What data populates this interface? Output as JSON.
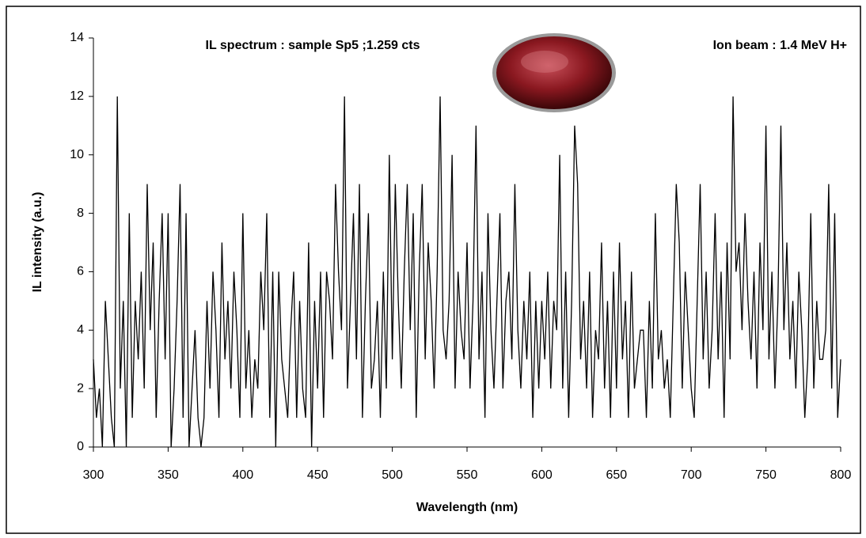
{
  "chart_data": {
    "type": "line",
    "title": "IL spectrum : sample Sp5 ;1.259 cts",
    "subtitle": "Ion beam : 1.4 MeV  H+",
    "xlabel": "Wavelength (nm)",
    "ylabel": "IL intensity (a.u.)",
    "color": "#000000",
    "x": [
      300,
      302,
      304,
      306,
      308,
      310,
      312,
      314,
      316,
      318,
      320,
      322,
      324,
      326,
      328,
      330,
      332,
      334,
      336,
      338,
      340,
      342,
      344,
      346,
      348,
      350,
      352,
      354,
      356,
      358,
      360,
      362,
      364,
      366,
      368,
      370,
      372,
      374,
      376,
      378,
      380,
      382,
      384,
      386,
      388,
      390,
      392,
      394,
      396,
      398,
      400,
      402,
      404,
      406,
      408,
      410,
      412,
      414,
      416,
      418,
      420,
      422,
      424,
      426,
      428,
      430,
      432,
      434,
      436,
      438,
      440,
      442,
      444,
      446,
      448,
      450,
      452,
      454,
      456,
      458,
      460,
      462,
      464,
      466,
      468,
      470,
      472,
      474,
      476,
      478,
      480,
      482,
      484,
      486,
      488,
      490,
      492,
      494,
      496,
      498,
      500,
      502,
      504,
      506,
      508,
      510,
      512,
      514,
      516,
      518,
      520,
      522,
      524,
      526,
      528,
      530,
      532,
      534,
      536,
      538,
      540,
      542,
      544,
      546,
      548,
      550,
      552,
      554,
      556,
      558,
      560,
      562,
      564,
      566,
      568,
      570,
      572,
      574,
      576,
      578,
      580,
      582,
      584,
      586,
      588,
      590,
      592,
      594,
      596,
      598,
      600,
      602,
      604,
      606,
      608,
      610,
      612,
      614,
      616,
      618,
      620,
      622,
      624,
      626,
      628,
      630,
      632,
      634,
      636,
      638,
      640,
      642,
      644,
      646,
      648,
      650,
      652,
      654,
      656,
      658,
      660,
      662,
      664,
      666,
      668,
      670,
      672,
      674,
      676,
      678,
      680,
      682,
      684,
      686,
      688,
      690,
      692,
      694,
      696,
      698,
      700,
      702,
      704,
      706,
      708,
      710,
      712,
      714,
      716,
      718,
      720,
      722,
      724,
      726,
      728,
      730,
      732,
      734,
      736,
      738,
      740,
      742,
      744,
      746,
      748,
      750,
      752,
      754,
      756,
      758,
      760,
      762,
      764,
      766,
      768,
      770,
      772,
      774,
      776,
      778,
      780,
      782,
      784,
      786,
      788,
      790,
      792,
      794,
      796,
      798,
      800
    ],
    "values": [
      3,
      1,
      2,
      0,
      5,
      3,
      1,
      0,
      12,
      2,
      5,
      0,
      8,
      1,
      5,
      3,
      6,
      2,
      9,
      4,
      7,
      1,
      5,
      8,
      3,
      8,
      0,
      2,
      5,
      9,
      1,
      8,
      0,
      2,
      4,
      1,
      0,
      1,
      5,
      2,
      6,
      4,
      1,
      7,
      3,
      5,
      2,
      6,
      4,
      1,
      8,
      2,
      4,
      1,
      3,
      2,
      6,
      4,
      8,
      1,
      6,
      0,
      6,
      3,
      2,
      1,
      4,
      6,
      1,
      5,
      2,
      1,
      7,
      0,
      5,
      2,
      6,
      1,
      6,
      5,
      3,
      9,
      6,
      4,
      12,
      2,
      5,
      8,
      3,
      9,
      1,
      5,
      8,
      2,
      3,
      5,
      1,
      6,
      2,
      10,
      3,
      9,
      5,
      2,
      6,
      9,
      4,
      8,
      1,
      6,
      9,
      3,
      7,
      5,
      2,
      6,
      12,
      4,
      3,
      5,
      10,
      2,
      6,
      4,
      3,
      7,
      2,
      5,
      11,
      3,
      6,
      1,
      8,
      4,
      2,
      5,
      8,
      2,
      5,
      6,
      3,
      9,
      4,
      2,
      5,
      3,
      6,
      1,
      5,
      2,
      5,
      3,
      6,
      2,
      5,
      4,
      10,
      2,
      6,
      1,
      5,
      11,
      9,
      3,
      5,
      2,
      6,
      1,
      4,
      3,
      7,
      2,
      5,
      1,
      6,
      2,
      7,
      3,
      5,
      1,
      6,
      2,
      3,
      4,
      4,
      1,
      5,
      2,
      8,
      3,
      4,
      2,
      3,
      1,
      5,
      9,
      7,
      2,
      6,
      4,
      2,
      1,
      5,
      9,
      3,
      6,
      2,
      4,
      8,
      3,
      6,
      1,
      7,
      3,
      12,
      6,
      7,
      4,
      8,
      5,
      3,
      6,
      2,
      7,
      4,
      11,
      3,
      6,
      2,
      5,
      11,
      4,
      7,
      3,
      5,
      2,
      6,
      4,
      1,
      3,
      8,
      2,
      5,
      3,
      3,
      4,
      9,
      2,
      8,
      1,
      3
    ],
    "xlim": [
      300,
      800
    ],
    "xticks": [
      300,
      350,
      400,
      450,
      500,
      550,
      600,
      650,
      700,
      750,
      800
    ],
    "ylim": [
      0,
      14
    ],
    "yticks": [
      0,
      2,
      4,
      6,
      8,
      10,
      12,
      14
    ],
    "grid": false
  }
}
